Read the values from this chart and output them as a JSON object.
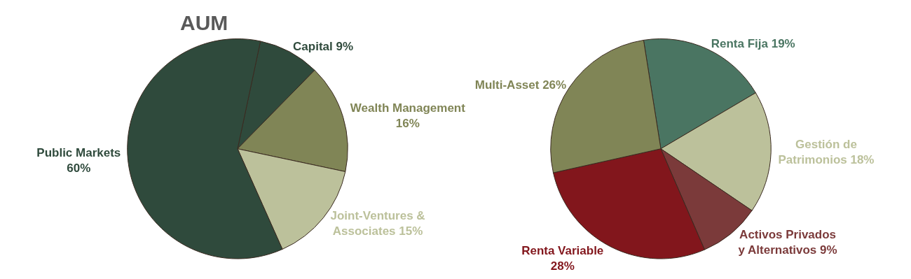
{
  "chart_data": [
    {
      "type": "pie",
      "title": "AUM",
      "categories": [
        "Capital",
        "Wealth Management",
        "Joint-Ventures & Associates",
        "Public Markets"
      ],
      "values": [
        9,
        16,
        15,
        60
      ],
      "colors": [
        "#2f4a3c",
        "#808556",
        "#bcc19b",
        "#2f4a3c"
      ],
      "value_labels": [
        "9%",
        "16%",
        "15%",
        "60%"
      ]
    },
    {
      "type": "pie",
      "categories": [
        "Renta Fija",
        "Gestión de Patrimonios",
        "Activos Privados y Alternativos",
        "Renta Variable",
        "Multi-Asset"
      ],
      "values": [
        19,
        18,
        9,
        28,
        26
      ],
      "colors": [
        "#4a7562",
        "#bcc19b",
        "#7b3a3a",
        "#82161c",
        "#808556"
      ],
      "value_labels": [
        "19%",
        "18%",
        "9%",
        "28%",
        "26%"
      ]
    }
  ]
}
